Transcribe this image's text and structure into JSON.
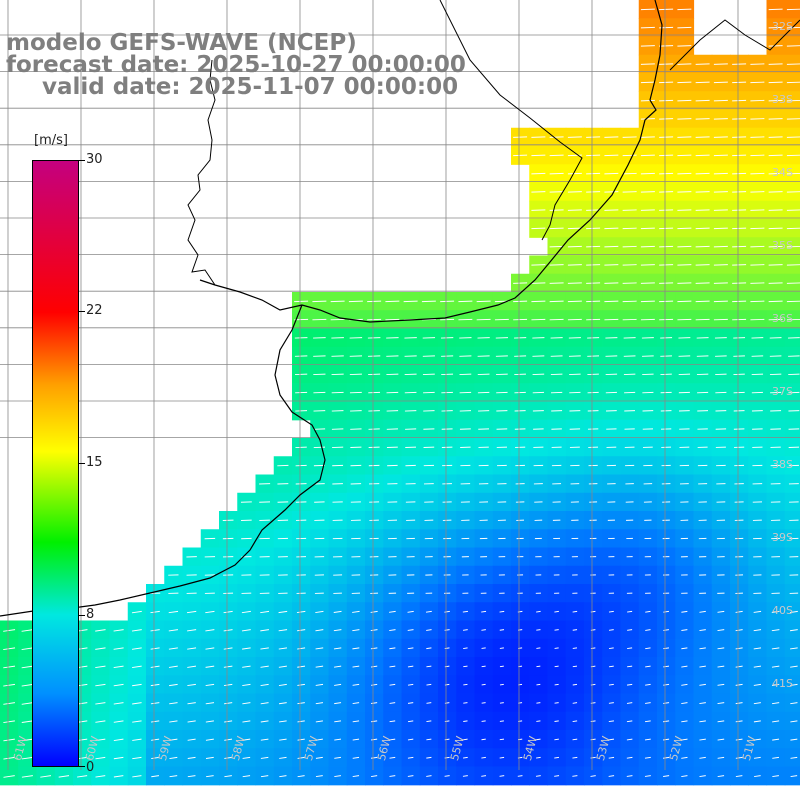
{
  "title": {
    "line1": "modelo GEFS-WAVE (NCEP)",
    "line2": "forecast date: 2025-10-27 00:00:00",
    "line3": "valid date: 2025-11-07 00:00:00"
  },
  "colorbar": {
    "unit": "[m/s]",
    "ticks": [
      "30",
      "22",
      "15",
      "8",
      "0"
    ],
    "stops": [
      {
        "value": 30,
        "color": "#c4007f"
      },
      {
        "value": 22,
        "color": "#ff0000"
      },
      {
        "value": 15,
        "color": "#ffff00"
      },
      {
        "value": 8,
        "color": "#00e8e0"
      },
      {
        "value": 0,
        "color": "#0000ff"
      }
    ]
  },
  "lat_labels": [
    "32S",
    "33S",
    "34S",
    "35S",
    "36S",
    "37S",
    "38S",
    "39S",
    "40S",
    "41S"
  ],
  "lon_labels": [
    "61W",
    "60W",
    "59W",
    "58W",
    "57W",
    "56W",
    "55W",
    "54W",
    "53W",
    "52W",
    "51W"
  ],
  "colors": {
    "land": "#ffffff",
    "coastline": "#000000",
    "grid": "#888888",
    "arrows": "#ffffff",
    "title_text": "#7f7f7f"
  }
}
